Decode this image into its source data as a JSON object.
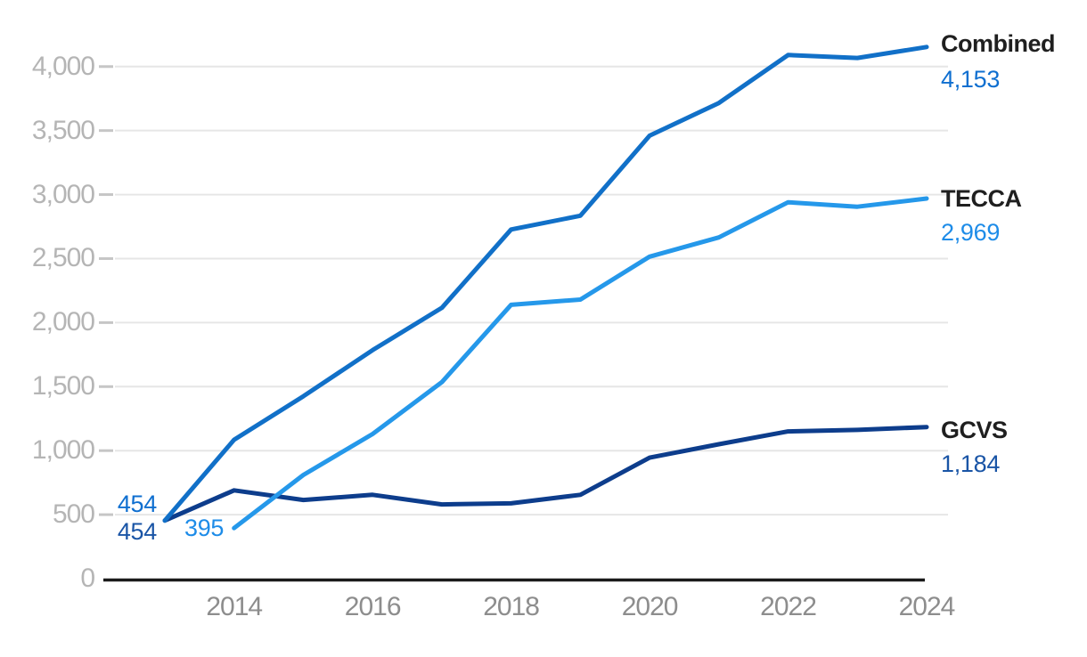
{
  "chart_data": {
    "type": "line",
    "title": "",
    "xlabel": "",
    "ylabel": "",
    "x": [
      2013,
      2014,
      2015,
      2016,
      2017,
      2018,
      2019,
      2020,
      2021,
      2022,
      2023,
      2024
    ],
    "x_tick_years": [
      2014,
      2016,
      2018,
      2020,
      2022,
      2024
    ],
    "x_tick_labels": [
      "2014",
      "2016",
      "2018",
      "2020",
      "2022",
      "2024"
    ],
    "y_ticks": [
      {
        "value": 0,
        "label": "0"
      },
      {
        "value": 500,
        "label": "500"
      },
      {
        "value": 1000,
        "label": "1,000"
      },
      {
        "value": 1500,
        "label": "1,500"
      },
      {
        "value": 2000,
        "label": "2,000"
      },
      {
        "value": 2500,
        "label": "2,500"
      },
      {
        "value": 3000,
        "label": "3,000"
      },
      {
        "value": 3500,
        "label": "3,500"
      },
      {
        "value": 4000,
        "label": "4,000"
      }
    ],
    "ylim": [
      0,
      4300
    ],
    "grid": "horizontal-only",
    "legend_position": "direct-end-labels-right",
    "series": [
      {
        "name": "Combined",
        "color": "#1170c8",
        "value_color": "#0f6fd0",
        "values": [
          454,
          1085,
          1425,
          1785,
          2115,
          2727,
          2835,
          3460,
          3715,
          4090,
          4067,
          4153
        ],
        "end_label": {
          "name": "Combined",
          "value": "4,153"
        },
        "start_label": {
          "value": "454",
          "year": 2013
        }
      },
      {
        "name": "TECCA",
        "color": "#2598ea",
        "value_color": "#1e8ce8",
        "values": [
          null,
          395,
          810,
          1130,
          1535,
          2139,
          2180,
          2515,
          2665,
          2940,
          2905,
          2969
        ],
        "end_label": {
          "name": "TECCA",
          "value": "2,969"
        },
        "start_label": {
          "value": "395",
          "year": 2014
        }
      },
      {
        "name": "GCVS",
        "color": "#0d3d8c",
        "value_color": "#1a55a6",
        "values": [
          454,
          690,
          615,
          655,
          580,
          588,
          655,
          945,
          1050,
          1150,
          1162,
          1184
        ],
        "end_label": {
          "name": "GCVS",
          "value": "1,184"
        },
        "start_label": {
          "value": "454",
          "year": 2013
        }
      }
    ]
  }
}
